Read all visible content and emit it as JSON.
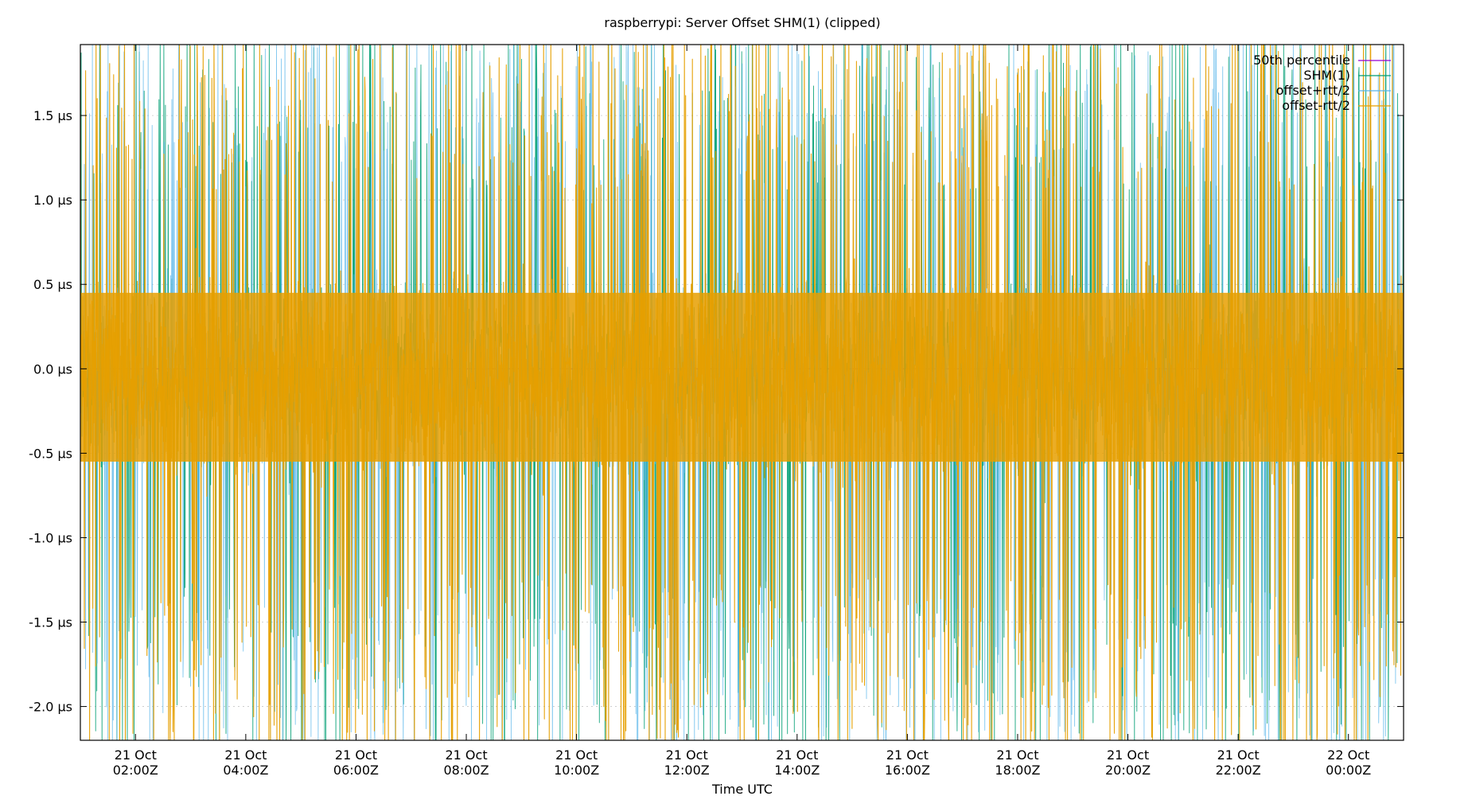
{
  "chart_data": {
    "type": "line",
    "title": "raspberrypi: Server Offset SHM(1) (clipped)",
    "xlabel": "Time UTC",
    "ylabel": "",
    "ylim": [
      -2.2,
      1.92
    ],
    "xlim": [
      "2023-10-21T01:00:00Z",
      "2023-10-22T01:00:00Z"
    ],
    "grid": true,
    "legend_position": "top-right",
    "y_ticks": [
      {
        "value": 1.5,
        "label": "1.5 µs"
      },
      {
        "value": 1.0,
        "label": "1.0 µs"
      },
      {
        "value": 0.5,
        "label": "0.5 µs"
      },
      {
        "value": 0.0,
        "label": "0.0 µs"
      },
      {
        "value": -0.5,
        "label": "-0.5 µs"
      },
      {
        "value": -1.0,
        "label": "-1.0 µs"
      },
      {
        "value": -1.5,
        "label": "-1.5 µs"
      },
      {
        "value": -2.0,
        "label": "-2.0 µs"
      }
    ],
    "x_ticks": [
      {
        "value": "2023-10-21T02:00:00Z",
        "line1": "21 Oct",
        "line2": "02:00Z"
      },
      {
        "value": "2023-10-21T04:00:00Z",
        "line1": "21 Oct",
        "line2": "04:00Z"
      },
      {
        "value": "2023-10-21T06:00:00Z",
        "line1": "21 Oct",
        "line2": "06:00Z"
      },
      {
        "value": "2023-10-21T08:00:00Z",
        "line1": "21 Oct",
        "line2": "08:00Z"
      },
      {
        "value": "2023-10-21T10:00:00Z",
        "line1": "21 Oct",
        "line2": "10:00Z"
      },
      {
        "value": "2023-10-21T12:00:00Z",
        "line1": "21 Oct",
        "line2": "12:00Z"
      },
      {
        "value": "2023-10-21T14:00:00Z",
        "line1": "21 Oct",
        "line2": "14:00Z"
      },
      {
        "value": "2023-10-21T16:00:00Z",
        "line1": "21 Oct",
        "line2": "16:00Z"
      },
      {
        "value": "2023-10-21T18:00:00Z",
        "line1": "21 Oct",
        "line2": "18:00Z"
      },
      {
        "value": "2023-10-21T20:00:00Z",
        "line1": "21 Oct",
        "line2": "20:00Z"
      },
      {
        "value": "2023-10-21T22:00:00Z",
        "line1": "21 Oct",
        "line2": "22:00Z"
      },
      {
        "value": "2023-10-22T00:00:00Z",
        "line1": "22 Oct",
        "line2": "00:00Z"
      }
    ],
    "series": [
      {
        "name": "50th percentile",
        "color": "#9400d3",
        "values": [
          0.0
        ]
      },
      {
        "name": "SHM(1)",
        "color": "#009e73",
        "values": []
      },
      {
        "name": "offset+rtt/2",
        "color": "#56b4e9",
        "values": []
      },
      {
        "name": "offset-rtt/2",
        "color": "#e69f00",
        "values": []
      }
    ],
    "envelope_description_values": {
      "dense_band_min": -0.55,
      "dense_band_max": 0.45,
      "spike_min": -2.2,
      "spike_max": 1.92
    }
  }
}
